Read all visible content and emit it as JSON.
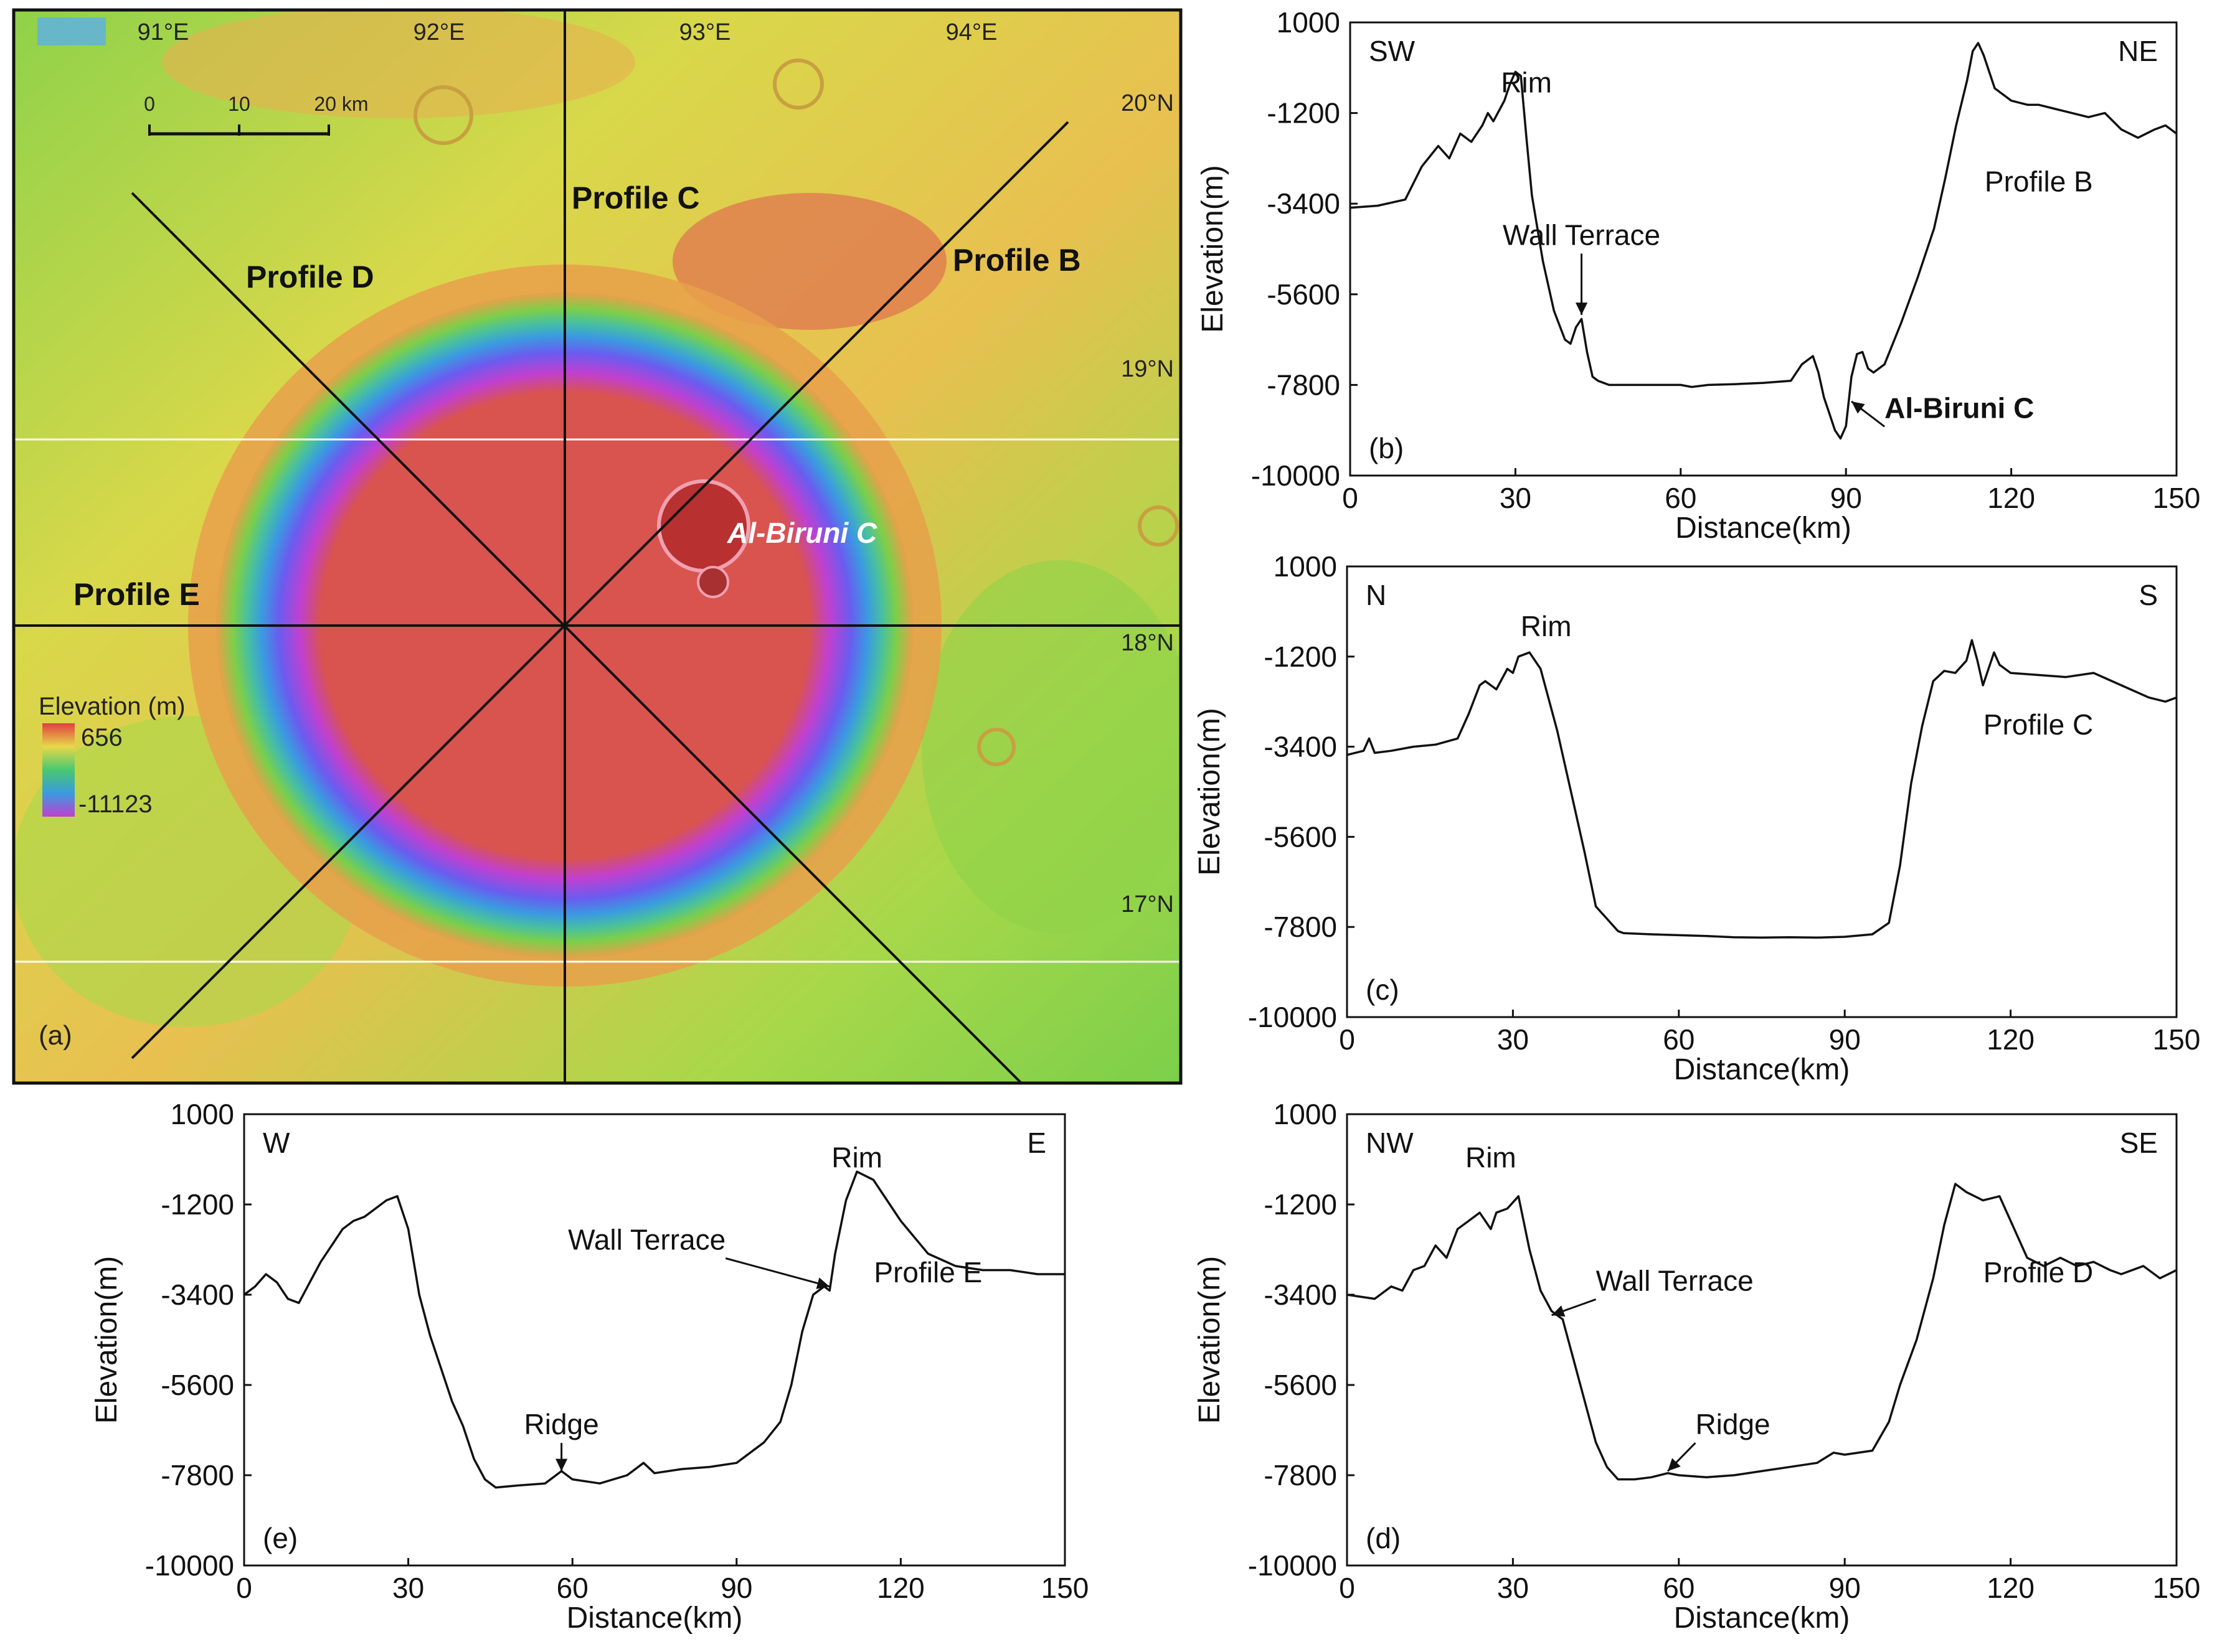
{
  "figure": {
    "map": {
      "panel_label": "(a)",
      "lon_labels": [
        "91°E",
        "92°E",
        "93°E",
        "94°E"
      ],
      "lat_labels": [
        "20°N",
        "19°N",
        "18°N",
        "17°N"
      ],
      "scale_bar": {
        "ticks": [
          "0",
          "10",
          "20 km"
        ]
      },
      "profile_labels": {
        "B": "Profile  B",
        "C": "Profile  C",
        "D": "Profile D",
        "E": "Profile E"
      },
      "crater_label": "Al-Biruni C",
      "legend": {
        "title": "Elevation (m)",
        "max": "656",
        "min": "-11123"
      },
      "colors": {
        "floor": "#d9534f",
        "wall_blue": "#3a8fe0",
        "wall_purple": "#b040e0",
        "terrain_green": "#7ccf4a",
        "terrain_yellow": "#e8d84a",
        "terrain_orange": "#e8a04a"
      }
    }
  },
  "chart_data": [
    {
      "type": "line",
      "panel": "(b)",
      "title": "Profile  B",
      "xlabel": "Distance(km)",
      "ylabel": "Elevation(m)",
      "xlim": [
        0,
        150
      ],
      "ylim": [
        -10000,
        1000
      ],
      "xticks": [
        0,
        30,
        60,
        90,
        120,
        150
      ],
      "yticks": [
        1000,
        -1200,
        -3400,
        -5600,
        -7800,
        -10000
      ],
      "corner_left": "SW",
      "corner_right": "NE",
      "annotations": [
        {
          "text": "Rim",
          "x": 32,
          "y": -700,
          "arrow": false,
          "bold": false
        },
        {
          "text": "Wall Terrace",
          "x": 42,
          "y": -4400,
          "arrow_to": [
            42,
            -6100
          ],
          "bold": false
        },
        {
          "text": "Al-Biruni C",
          "x": 97,
          "y": -8600,
          "arrow_to": [
            91,
            -8200
          ],
          "bold": true
        }
      ],
      "x": [
        0,
        5,
        10,
        13,
        16,
        18,
        20,
        22,
        24,
        25,
        26,
        28,
        29,
        30,
        31,
        32,
        33,
        35,
        37,
        39,
        40,
        41,
        42,
        43,
        44,
        45,
        47,
        50,
        55,
        60,
        62,
        65,
        70,
        75,
        80,
        82,
        84,
        85,
        86,
        87,
        88,
        89,
        90,
        91,
        92,
        93,
        94,
        95,
        97,
        100,
        103,
        106,
        108,
        110,
        112,
        113,
        114,
        115,
        117,
        120,
        123,
        125,
        128,
        131,
        134,
        137,
        140,
        143,
        146,
        148,
        150
      ],
      "y": [
        -3500,
        -3450,
        -3300,
        -2500,
        -2000,
        -2300,
        -1700,
        -1900,
        -1500,
        -1200,
        -1400,
        -900,
        -500,
        -200,
        -300,
        -1800,
        -3200,
        -4800,
        -6000,
        -6700,
        -6800,
        -6400,
        -6200,
        -7000,
        -7600,
        -7700,
        -7800,
        -7800,
        -7800,
        -7800,
        -7850,
        -7800,
        -7780,
        -7750,
        -7700,
        -7300,
        -7100,
        -7500,
        -8100,
        -8500,
        -8900,
        -9100,
        -8800,
        -7600,
        -7050,
        -7000,
        -7400,
        -7500,
        -7300,
        -6300,
        -5200,
        -4000,
        -2800,
        -1500,
        -400,
        300,
        500,
        200,
        -600,
        -900,
        -1000,
        -1000,
        -1100,
        -1200,
        -1300,
        -1200,
        -1600,
        -1800,
        -1600,
        -1500,
        -1700
      ]
    },
    {
      "type": "line",
      "panel": "(c)",
      "title": "Profile  C",
      "xlabel": "Distance(km)",
      "ylabel": "Elevation(m)",
      "xlim": [
        0,
        150
      ],
      "ylim": [
        -10000,
        1000
      ],
      "xticks": [
        0,
        30,
        60,
        90,
        120,
        150
      ],
      "yticks": [
        1000,
        -1200,
        -3400,
        -5600,
        -7800,
        -10000
      ],
      "corner_left": "N",
      "corner_right": "S",
      "annotations": [
        {
          "text": "Rim",
          "x": 36,
          "y": -700,
          "arrow": false,
          "bold": false
        }
      ],
      "x": [
        0,
        3,
        4,
        5,
        8,
        12,
        16,
        20,
        22,
        24,
        25,
        27,
        29,
        30,
        31,
        33,
        35,
        38,
        41,
        43,
        45,
        47,
        49,
        50,
        55,
        60,
        65,
        70,
        75,
        80,
        85,
        90,
        95,
        98,
        100,
        102,
        104,
        106,
        108,
        110,
        112,
        113,
        114,
        115,
        116,
        117,
        118,
        120,
        125,
        130,
        135,
        140,
        145,
        148,
        150
      ],
      "y": [
        -3600,
        -3500,
        -3200,
        -3550,
        -3500,
        -3400,
        -3350,
        -3200,
        -2600,
        -1900,
        -1800,
        -2000,
        -1500,
        -1600,
        -1200,
        -1100,
        -1500,
        -3000,
        -4800,
        -6000,
        -7300,
        -7600,
        -7900,
        -7950,
        -7980,
        -8000,
        -8020,
        -8050,
        -8060,
        -8050,
        -8060,
        -8040,
        -7980,
        -7700,
        -6300,
        -4300,
        -2900,
        -1800,
        -1550,
        -1600,
        -1300,
        -800,
        -1300,
        -1900,
        -1500,
        -1100,
        -1400,
        -1600,
        -1650,
        -1700,
        -1600,
        -1900,
        -2200,
        -2300,
        -2200
      ]
    },
    {
      "type": "line",
      "panel": "(d)",
      "title": "Profile D",
      "xlabel": "Distance(km)",
      "ylabel": "Elevation(m)",
      "xlim": [
        0,
        150
      ],
      "ylim": [
        -10000,
        1000
      ],
      "xticks": [
        0,
        30,
        60,
        90,
        120,
        150
      ],
      "yticks": [
        1000,
        -1200,
        -3400,
        -5600,
        -7800,
        -10000
      ],
      "corner_left": "NW",
      "corner_right": "SE",
      "annotations": [
        {
          "text": "Rim",
          "x": 26,
          "y": -300,
          "arrow": false,
          "bold": false
        },
        {
          "text": "Wall Terrace",
          "x": 45,
          "y": -3300,
          "arrow_to": [
            37,
            -3900
          ],
          "bold": false
        },
        {
          "text": "Ridge",
          "x": 63,
          "y": -6800,
          "arrow_to": [
            58,
            -7700
          ],
          "bold": false
        }
      ],
      "x": [
        0,
        5,
        8,
        10,
        12,
        14,
        16,
        18,
        20,
        22,
        24,
        26,
        27,
        29,
        31,
        33,
        35,
        37,
        39,
        41,
        43,
        45,
        47,
        49,
        52,
        55,
        58,
        60,
        65,
        70,
        75,
        80,
        85,
        88,
        90,
        95,
        98,
        100,
        103,
        106,
        108,
        110,
        112,
        115,
        118,
        120,
        123,
        126,
        129,
        132,
        135,
        138,
        140,
        144,
        147,
        150
      ],
      "y": [
        -3400,
        -3500,
        -3200,
        -3300,
        -2800,
        -2700,
        -2200,
        -2500,
        -1800,
        -1600,
        -1400,
        -1800,
        -1400,
        -1300,
        -1000,
        -2300,
        -3300,
        -3800,
        -4000,
        -5000,
        -6000,
        -7000,
        -7600,
        -7900,
        -7900,
        -7850,
        -7750,
        -7800,
        -7850,
        -7800,
        -7700,
        -7600,
        -7500,
        -7250,
        -7300,
        -7200,
        -6500,
        -5600,
        -4500,
        -3000,
        -1700,
        -700,
        -900,
        -1100,
        -1000,
        -1600,
        -2500,
        -2700,
        -2500,
        -2700,
        -2600,
        -2800,
        -2900,
        -2700,
        -3000,
        -2800
      ]
    },
    {
      "type": "line",
      "panel": "(e)",
      "title": "Profile E",
      "xlabel": "Distance(km)",
      "ylabel": "Elevation(m)",
      "xlim": [
        0,
        150
      ],
      "ylim": [
        -10000,
        1000
      ],
      "xticks": [
        0,
        30,
        60,
        90,
        120,
        150
      ],
      "yticks": [
        1000,
        -1200,
        -3400,
        -5600,
        -7800,
        -10000
      ],
      "corner_left": "W",
      "corner_right": "E",
      "annotations": [
        {
          "text": "Rim",
          "x": 112,
          "y": -300,
          "arrow": false,
          "bold": false
        },
        {
          "text": "Wall Terrace",
          "x": 88,
          "y": -2300,
          "arrow_to": [
            107,
            -3200
          ],
          "bold": false
        },
        {
          "text": "Ridge",
          "x": 58,
          "y": -6800,
          "arrow_to": [
            58,
            -7700
          ],
          "bold": false
        }
      ],
      "x": [
        0,
        2,
        4,
        6,
        8,
        10,
        12,
        14,
        16,
        18,
        20,
        22,
        24,
        26,
        28,
        30,
        32,
        34,
        36,
        38,
        40,
        42,
        44,
        46,
        50,
        55,
        58,
        60,
        65,
        70,
        73,
        75,
        80,
        85,
        90,
        95,
        98,
        100,
        102,
        104,
        106,
        107,
        108,
        110,
        112,
        115,
        118,
        120,
        125,
        130,
        135,
        140,
        145,
        150
      ],
      "y": [
        -3400,
        -3200,
        -2900,
        -3100,
        -3500,
        -3600,
        -3100,
        -2600,
        -2200,
        -1800,
        -1600,
        -1500,
        -1300,
        -1100,
        -1000,
        -1800,
        -3400,
        -4400,
        -5200,
        -6000,
        -6600,
        -7400,
        -7900,
        -8100,
        -8050,
        -8000,
        -7700,
        -7900,
        -8000,
        -7800,
        -7500,
        -7750,
        -7650,
        -7600,
        -7500,
        -7000,
        -6500,
        -5600,
        -4300,
        -3400,
        -3200,
        -3300,
        -2400,
        -1100,
        -400,
        -600,
        -1200,
        -1600,
        -2400,
        -2700,
        -2800,
        -2800,
        -2900,
        -2900
      ]
    }
  ]
}
